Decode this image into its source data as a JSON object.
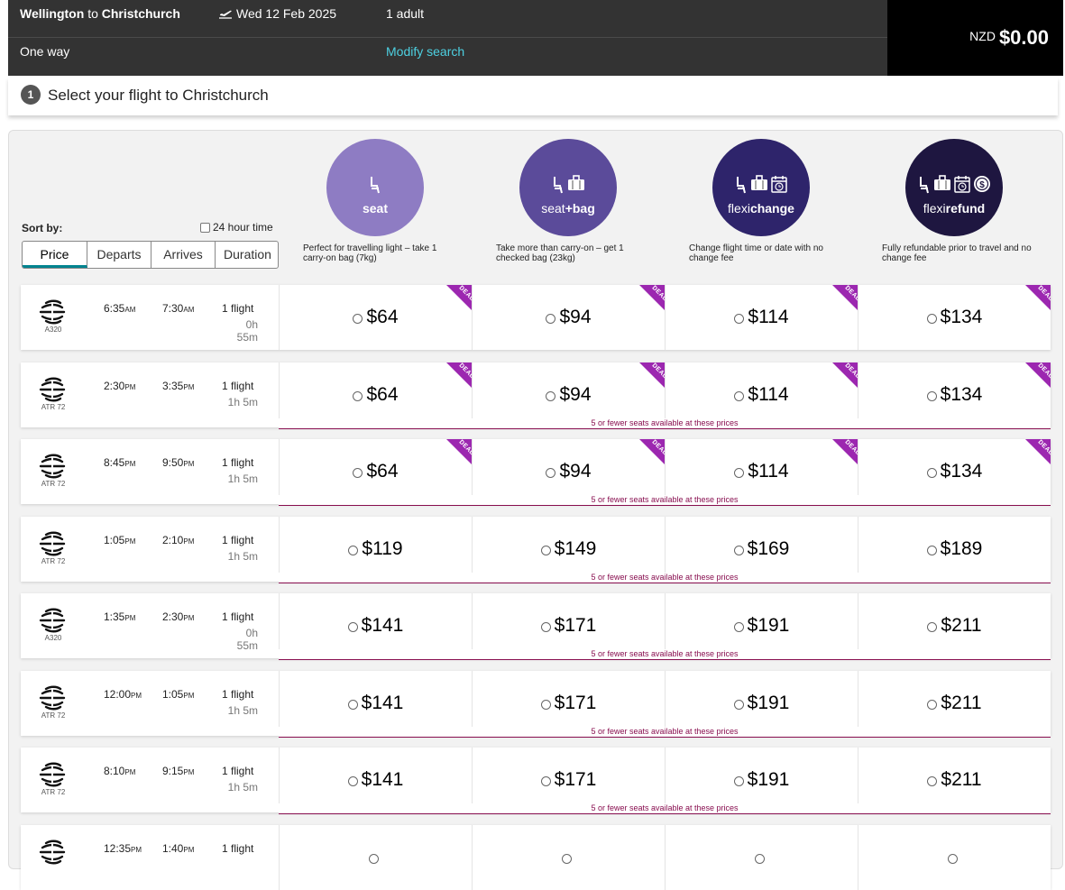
{
  "header": {
    "origin": "Wellington",
    "to": "to",
    "destination": "Christchurch",
    "date": "Wed 12 Feb 2025",
    "passengers": "1 adult",
    "trip_type": "One way",
    "modify_link": "Modify search",
    "currency": "NZD",
    "total": "$0.00",
    "plane_icon": "plane-depart-icon"
  },
  "step": {
    "number": "1",
    "label": "Select your flight to Christchurch"
  },
  "sort": {
    "label": "Sort by:",
    "h24_label": "24 hour time",
    "tabs": [
      "Price",
      "Departs",
      "Arrives",
      "Duration"
    ],
    "active": "Price"
  },
  "fares": [
    {
      "name_a": "seat",
      "name_b": "",
      "desc": "Perfect for travelling light – take 1 carry-on bag (7kg)",
      "color": "#8e7cc3"
    },
    {
      "name_a": "seat",
      "name_b": "+bag",
      "desc": "Take more than carry-on – get 1 checked bag (23kg)",
      "color": "#5b4b9a"
    },
    {
      "name_a": "flexi",
      "name_b": "change",
      "desc": "Change flight time or date with no change fee",
      "color": "#2e246b"
    },
    {
      "name_a": "flexi",
      "name_b": "refund",
      "desc": "Fully refundable prior to travel and no change fee",
      "color": "#1e1640"
    }
  ],
  "deal_label": "DEAL",
  "warning": "5 or fewer seats available at these prices",
  "flights": [
    {
      "dep": "6:35",
      "dep_s": "AM",
      "arr": "7:30",
      "arr_s": "AM",
      "flights": "1 flight",
      "duration": "0h 55m",
      "aircraft": "A320",
      "prices": [
        "$64",
        "$94",
        "$114",
        "$134"
      ],
      "deal": true,
      "warning": false
    },
    {
      "dep": "2:30",
      "dep_s": "PM",
      "arr": "3:35",
      "arr_s": "PM",
      "flights": "1 flight",
      "duration": "1h 5m",
      "aircraft": "ATR 72",
      "prices": [
        "$64",
        "$94",
        "$114",
        "$134"
      ],
      "deal": true,
      "warning": true
    },
    {
      "dep": "8:45",
      "dep_s": "PM",
      "arr": "9:50",
      "arr_s": "PM",
      "flights": "1 flight",
      "duration": "1h 5m",
      "aircraft": "ATR 72",
      "prices": [
        "$64",
        "$94",
        "$114",
        "$134"
      ],
      "deal": true,
      "warning": true
    },
    {
      "dep": "1:05",
      "dep_s": "PM",
      "arr": "2:10",
      "arr_s": "PM",
      "flights": "1 flight",
      "duration": "1h 5m",
      "aircraft": "ATR 72",
      "prices": [
        "$119",
        "$149",
        "$169",
        "$189"
      ],
      "deal": false,
      "warning": true
    },
    {
      "dep": "1:35",
      "dep_s": "PM",
      "arr": "2:30",
      "arr_s": "PM",
      "flights": "1 flight",
      "duration": "0h 55m",
      "aircraft": "A320",
      "prices": [
        "$141",
        "$171",
        "$191",
        "$211"
      ],
      "deal": false,
      "warning": true
    },
    {
      "dep": "12:00",
      "dep_s": "PM",
      "arr": "1:05",
      "arr_s": "PM",
      "flights": "1 flight",
      "duration": "1h 5m",
      "aircraft": "ATR 72",
      "prices": [
        "$141",
        "$171",
        "$191",
        "$211"
      ],
      "deal": false,
      "warning": true
    },
    {
      "dep": "8:10",
      "dep_s": "PM",
      "arr": "9:15",
      "arr_s": "PM",
      "flights": "1 flight",
      "duration": "1h 5m",
      "aircraft": "ATR 72",
      "prices": [
        "$141",
        "$171",
        "$191",
        "$211"
      ],
      "deal": false,
      "warning": true
    },
    {
      "dep": "12:35",
      "dep_s": "PM",
      "arr": "1:40",
      "arr_s": "PM",
      "flights": "1 flight",
      "duration": "",
      "aircraft": "",
      "prices": [
        "",
        "",
        "",
        ""
      ],
      "deal": false,
      "warning": false
    }
  ]
}
